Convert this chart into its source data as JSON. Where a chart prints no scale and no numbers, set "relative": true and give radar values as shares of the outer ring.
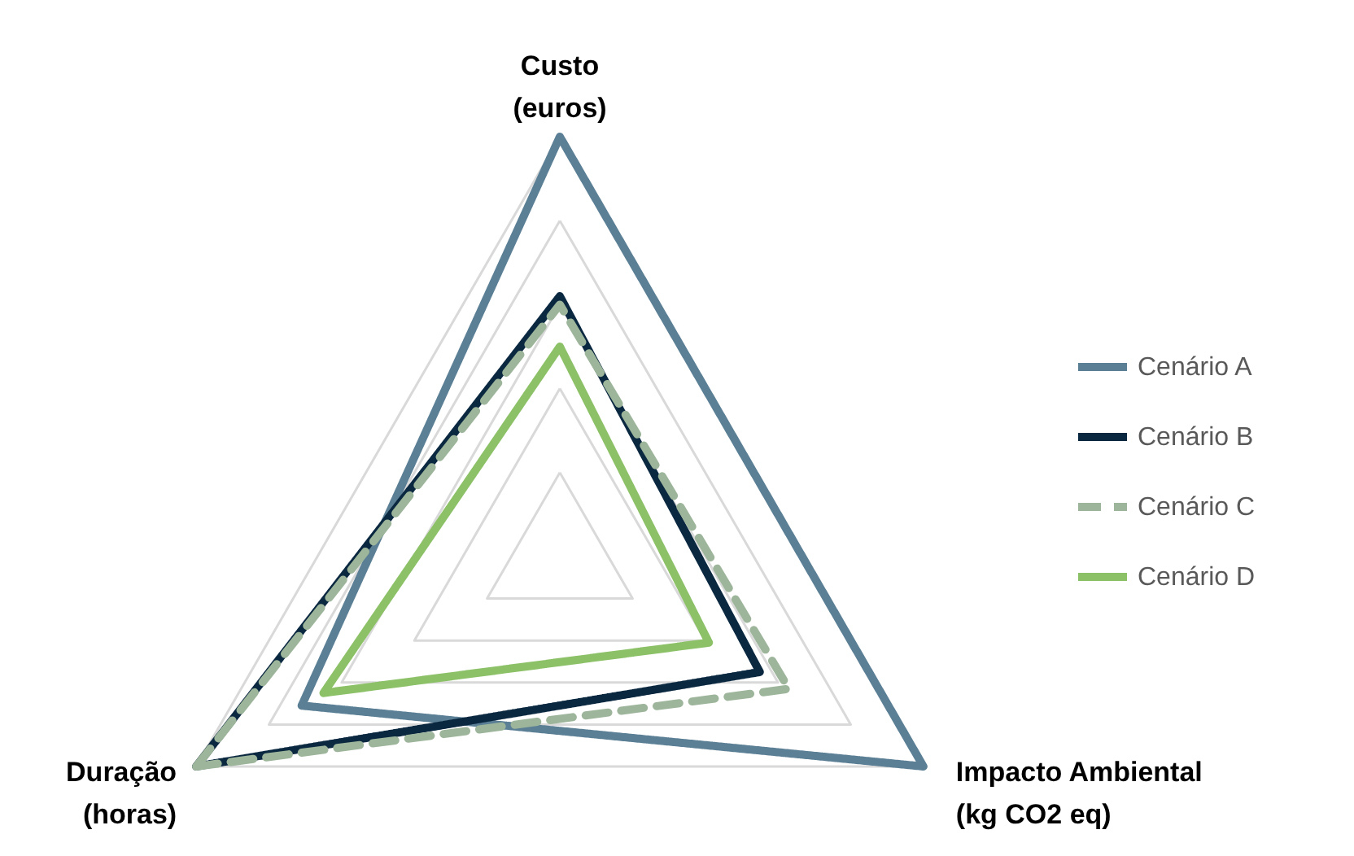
{
  "chart_data": {
    "type": "radar",
    "relative": true,
    "grid": true,
    "legend": "right",
    "categories": [
      "Custo\n(euros)",
      "Impacto Ambiental\n(kg CO2 eq)",
      "Duração\n(horas)"
    ],
    "series": [
      {
        "name": "Cenário A",
        "color": "#5b7f95",
        "line_style": "solid",
        "values": [
          1.0,
          1.0,
          0.71
        ]
      },
      {
        "name": "Cenário B",
        "color": "#0b2841",
        "line_style": "solid",
        "values": [
          0.62,
          0.55,
          1.0
        ]
      },
      {
        "name": "Cenário C",
        "color": "#9db59a",
        "line_style": "dashed",
        "values": [
          0.6,
          0.63,
          1.0
        ]
      },
      {
        "name": "Cenário D",
        "color": "#8cc168",
        "line_style": "solid",
        "values": [
          0.5,
          0.41,
          0.65
        ]
      }
    ]
  }
}
